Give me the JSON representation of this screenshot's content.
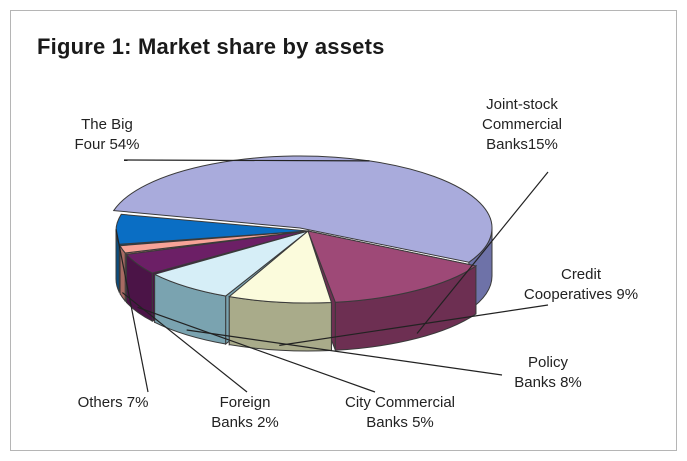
{
  "chart_data": {
    "type": "pie",
    "title": "Figure 1: Market share by assets",
    "slices": [
      {
        "label": "The Big\nFour 54%",
        "value": 54,
        "color": "#a9abdc",
        "side": "#6e72a8",
        "explode": 0
      },
      {
        "label": "Joint-stock\nCommercial\nBanks15%",
        "value": 15,
        "color": "#9e4977",
        "side": "#6d2f52",
        "explode": 1
      },
      {
        "label": "Credit\nCooperatives 9%",
        "value": 9,
        "color": "#fbfbdc",
        "side": "#a9ab8a",
        "explode": 1
      },
      {
        "label": "Policy\nBanks 8%",
        "value": 8,
        "color": "#d6eef7",
        "side": "#7aa3b0",
        "explode": 1
      },
      {
        "label": "City Commercial\nBanks 5%",
        "value": 5,
        "color": "#6c1f66",
        "side": "#4b1447",
        "explode": 1
      },
      {
        "label": "Foreign\nBanks 2%",
        "value": 2,
        "color": "#f7a397",
        "side": "#a86a62",
        "explode": 1
      },
      {
        "label": "Others 7%",
        "value": 7,
        "color": "#0a6ec4",
        "side": "#0b4d7e",
        "explode": 1
      }
    ]
  }
}
